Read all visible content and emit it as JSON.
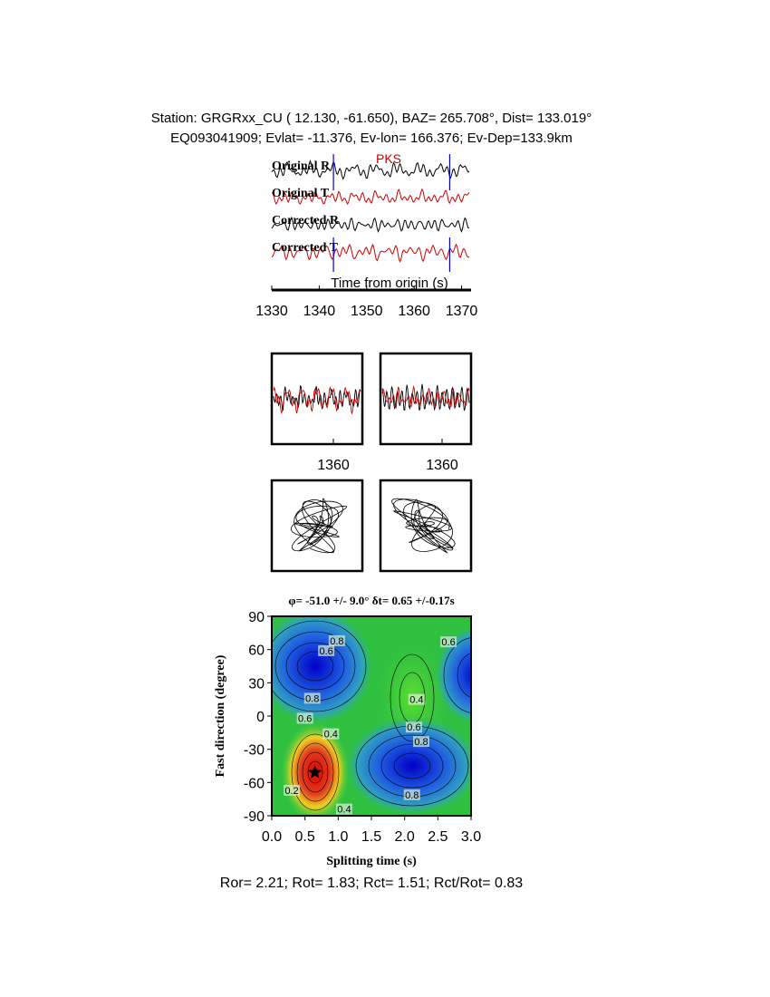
{
  "header": {
    "line1": "Station: GRGRxx_CU (  12.130,  -61.650), BAZ=  265.708°, Dist=  133.019°",
    "line2": "EQ093041909; Evlat= -11.376, Ev-lon= 166.376; Ev-Dep=133.9km"
  },
  "chart_data": [
    {
      "type": "seismogram",
      "traces": [
        {
          "name": "Original R",
          "color": "#000000"
        },
        {
          "name": "Original T",
          "color": "#cc0000"
        },
        {
          "name": "Corrected R",
          "color": "#000000"
        },
        {
          "name": "Corrected T",
          "color": "#cc0000"
        }
      ],
      "phase": {
        "label": "PKS",
        "color": "#cc0000"
      },
      "window": [
        1343,
        1367.5
      ],
      "window_color": "#0000cc",
      "xlabel": "Time from origin (s)",
      "xlim": [
        1330,
        1372
      ],
      "xticks": [
        1330,
        1340,
        1350,
        1360,
        1370
      ]
    },
    {
      "type": "waveform-panels",
      "xticks": [
        1360
      ]
    },
    {
      "type": "contour",
      "title": "φ= -51.0 +/- 9.0° δt= 0.65 +/-0.17s",
      "xlabel": "Splitting time (s)",
      "ylabel": "Fast direction (degree)",
      "xlim": [
        0,
        3
      ],
      "ylim": [
        -90,
        90
      ],
      "xticks": [
        {
          "value": 0,
          "label": "0.0"
        },
        {
          "value": 0.5,
          "label": "0.5"
        },
        {
          "value": 1,
          "label": "1.0"
        },
        {
          "value": 1.5,
          "label": "1.5"
        },
        {
          "value": 2,
          "label": "2.0"
        },
        {
          "value": 2.5,
          "label": "2.5"
        },
        {
          "value": 3,
          "label": "3.0"
        }
      ],
      "yticks": [
        -90,
        -60,
        -30,
        0,
        30,
        60,
        90
      ],
      "best": {
        "x": 0.65,
        "y": -51
      },
      "contour_labels": [
        {
          "text": "0.6",
          "x": 0.82,
          "y": 59
        },
        {
          "text": "0.8",
          "x": 0.98,
          "y": 68
        },
        {
          "text": "0.8",
          "x": 0.61,
          "y": 16
        },
        {
          "text": "0.6",
          "x": 0.5,
          "y": -2
        },
        {
          "text": "0.4",
          "x": 0.89,
          "y": -16
        },
        {
          "text": "0.6",
          "x": 2.14,
          "y": -10
        },
        {
          "text": "0.8",
          "x": 2.25,
          "y": -23
        },
        {
          "text": "0.4",
          "x": 2.18,
          "y": 15
        },
        {
          "text": "0.6",
          "x": 2.66,
          "y": 67
        },
        {
          "text": "0.8",
          "x": 2.11,
          "y": -71
        },
        {
          "text": "0.2",
          "x": 0.3,
          "y": -67
        },
        {
          "text": "0.4",
          "x": 1.09,
          "y": -84
        }
      ]
    }
  ],
  "footer": "Ror= 2.21; Rot= 1.83; Rct= 1.51; Rct/Rot= 0.83"
}
